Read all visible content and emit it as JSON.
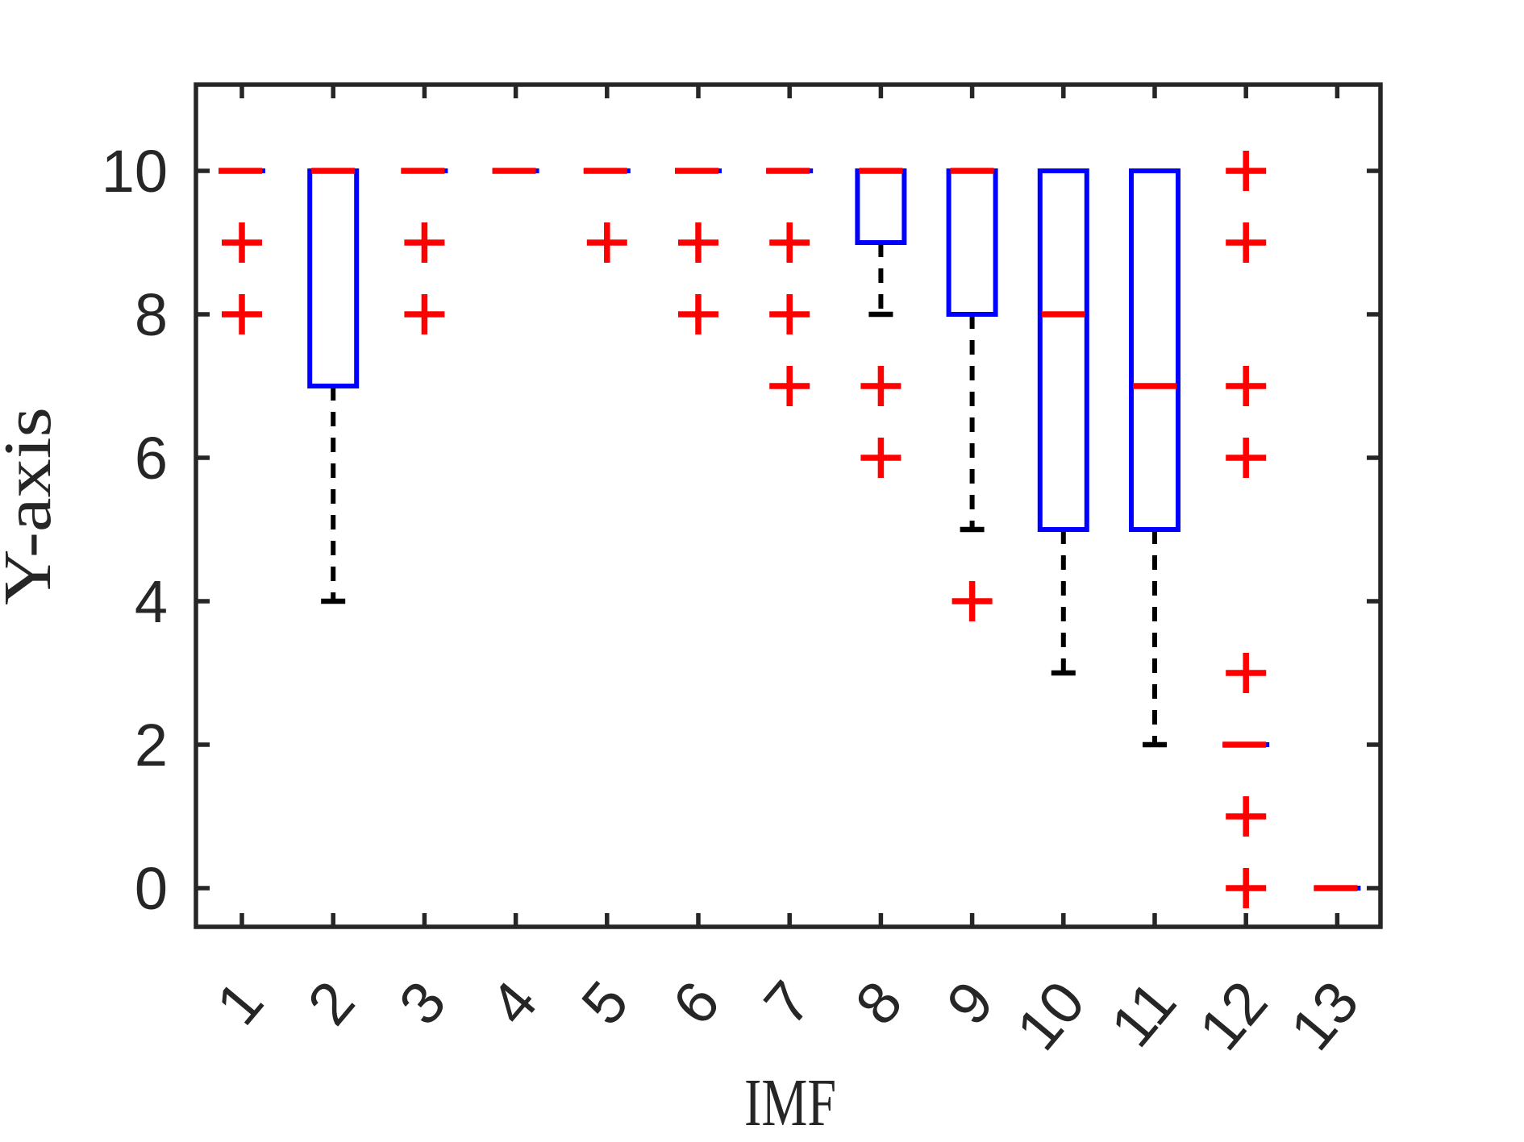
{
  "chart_data": {
    "type": "boxplot",
    "title": "",
    "xlabel": "IMF",
    "ylabel": "Y-axis",
    "categories": [
      "1",
      "2",
      "3",
      "4",
      "5",
      "6",
      "7",
      "8",
      "9",
      "10",
      "11",
      "12",
      "13"
    ],
    "yticks": [
      0,
      2,
      4,
      6,
      8,
      10
    ],
    "ylim": [
      -0.55,
      11.2
    ],
    "grid": false,
    "legend": null,
    "colors": {
      "box": "#0000ff",
      "median": "#ff0000",
      "outlier": "#ff0000",
      "whisker": "#000000",
      "axis": "#262626",
      "background": "#ffffff"
    },
    "boxes": [
      {
        "category": "1",
        "q1": 10,
        "median": 10,
        "q3": 10,
        "whisker_low": 10,
        "whisker_high": 10,
        "outliers": [
          9,
          8
        ]
      },
      {
        "category": "2",
        "q1": 7,
        "median": 10,
        "q3": 10,
        "whisker_low": 4,
        "whisker_high": 10,
        "outliers": []
      },
      {
        "category": "3",
        "q1": 10,
        "median": 10,
        "q3": 10,
        "whisker_low": 10,
        "whisker_high": 10,
        "outliers": [
          9,
          8
        ]
      },
      {
        "category": "4",
        "q1": 10,
        "median": 10,
        "q3": 10,
        "whisker_low": 10,
        "whisker_high": 10,
        "outliers": []
      },
      {
        "category": "5",
        "q1": 10,
        "median": 10,
        "q3": 10,
        "whisker_low": 10,
        "whisker_high": 10,
        "outliers": [
          9
        ]
      },
      {
        "category": "6",
        "q1": 10,
        "median": 10,
        "q3": 10,
        "whisker_low": 10,
        "whisker_high": 10,
        "outliers": [
          9,
          8
        ]
      },
      {
        "category": "7",
        "q1": 10,
        "median": 10,
        "q3": 10,
        "whisker_low": 10,
        "whisker_high": 10,
        "outliers": [
          9,
          8,
          7
        ]
      },
      {
        "category": "8",
        "q1": 9,
        "median": 10,
        "q3": 10,
        "whisker_low": 8,
        "whisker_high": 10,
        "outliers": [
          7,
          6
        ]
      },
      {
        "category": "9",
        "q1": 8,
        "median": 10,
        "q3": 10,
        "whisker_low": 5,
        "whisker_high": 10,
        "outliers": [
          4
        ]
      },
      {
        "category": "10",
        "q1": 5,
        "median": 8,
        "q3": 10,
        "whisker_low": 3,
        "whisker_high": 10,
        "outliers": []
      },
      {
        "category": "11",
        "q1": 5,
        "median": 7,
        "q3": 10,
        "whisker_low": 2,
        "whisker_high": 10,
        "outliers": []
      },
      {
        "category": "12",
        "q1": 2,
        "median": 2,
        "q3": 2,
        "whisker_low": 2,
        "whisker_high": 2,
        "outliers": [
          10,
          9,
          7,
          6,
          3,
          1,
          0
        ]
      },
      {
        "category": "13",
        "q1": 0,
        "median": 0,
        "q3": 0,
        "whisker_low": 0,
        "whisker_high": 0,
        "outliers": []
      }
    ]
  }
}
